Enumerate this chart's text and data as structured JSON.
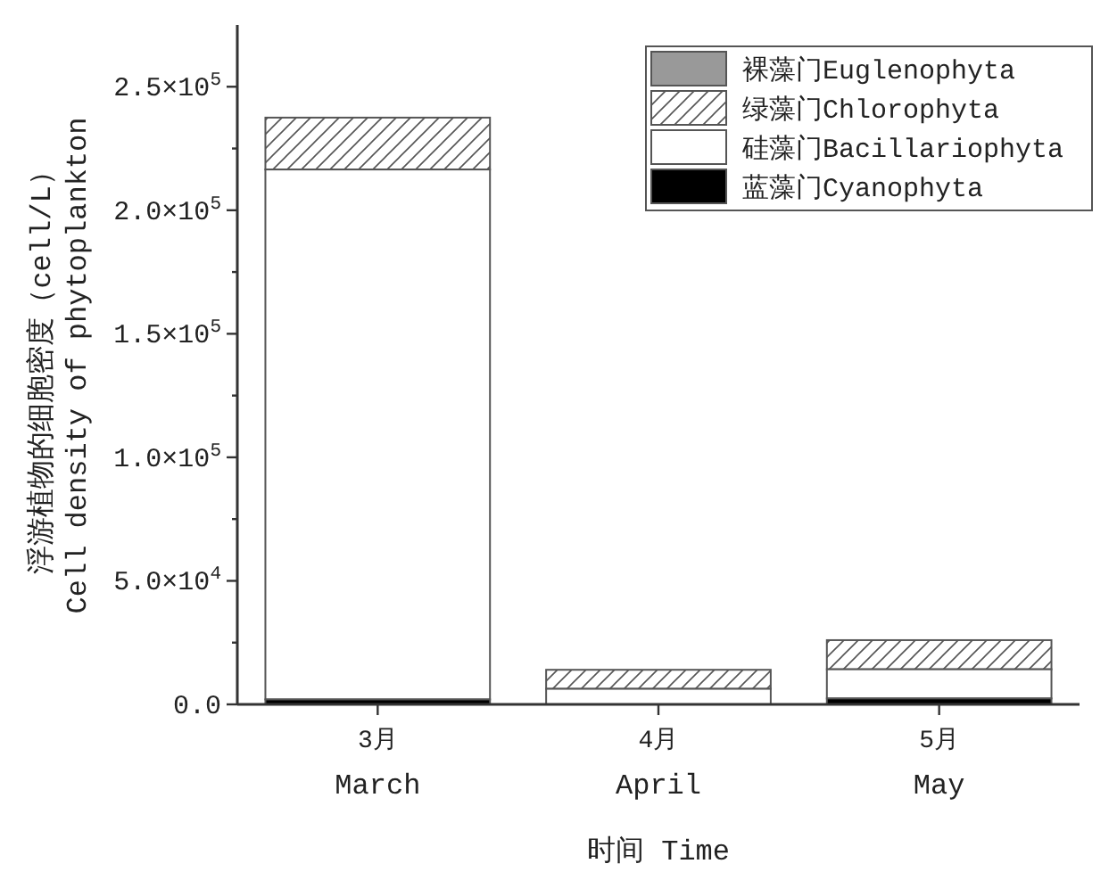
{
  "chart_data": {
    "type": "bar",
    "stacked": true,
    "xlabel": "时间 Time",
    "ylabel": "浮游植物的细胞密度（cell/L）\nCell density of phytoplankton",
    "categories": [
      "3月\nMarch",
      "4月\nApril",
      "5月\nMay"
    ],
    "series": [
      {
        "name": "蓝藻门Cyanophyta",
        "color": "#000000",
        "values": [
          2000,
          0,
          2400
        ]
      },
      {
        "name": "硅藻门Bacillariophyta",
        "color": "#ffffff",
        "values": [
          214500,
          6300,
          11800
        ]
      },
      {
        "name": "绿藻门Chlorophyta",
        "color": "#555555",
        "values": [
          21000,
          7700,
          11800
        ]
      },
      {
        "name": "裸藻门Euglenophyta",
        "color": "#999999",
        "values": [
          0,
          0,
          0
        ]
      }
    ],
    "ylim": [
      0,
      275000
    ],
    "yticks": [
      {
        "value": 0,
        "label": "0.0"
      },
      {
        "value": 25000,
        "label": null
      },
      {
        "value": 50000,
        "label": "5.0×10$^{4}$"
      },
      {
        "value": 75000,
        "label": null
      },
      {
        "value": 100000,
        "label": "1.0×10$^{5}$"
      },
      {
        "value": 125000,
        "label": null
      },
      {
        "value": 150000,
        "label": "1.5×10$^{5}$"
      },
      {
        "value": 175000,
        "label": null
      },
      {
        "value": 200000,
        "label": "2.0×10$^{5}$"
      },
      {
        "value": 225000,
        "label": null
      },
      {
        "value": 250000,
        "label": "2.5×10$^{5}$"
      }
    ],
    "grid": false,
    "legend": "top right"
  }
}
